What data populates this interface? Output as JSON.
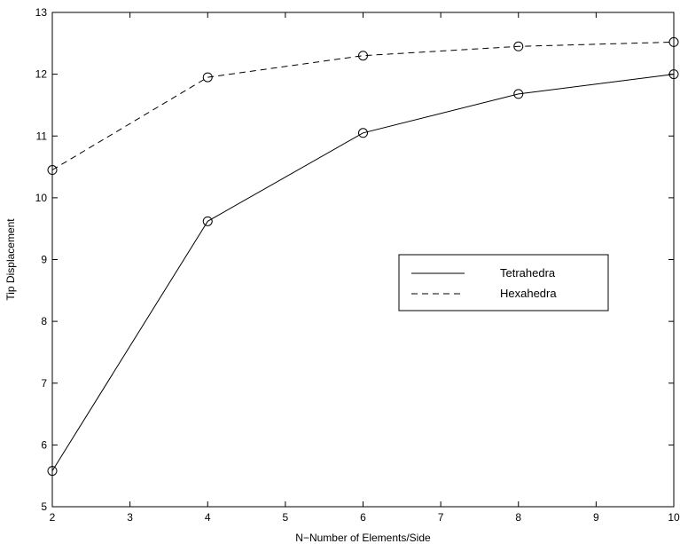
{
  "chart_data": {
    "type": "line",
    "xlabel": "N−Number of Elements/Side",
    "ylabel": "Tip Displacement",
    "xlim": [
      2,
      10
    ],
    "ylim": [
      5,
      13
    ],
    "xticks": [
      2,
      3,
      4,
      5,
      6,
      7,
      8,
      9,
      10
    ],
    "yticks": [
      5,
      6,
      7,
      8,
      9,
      10,
      11,
      12,
      13
    ],
    "x": [
      2,
      4,
      6,
      8,
      10
    ],
    "grid": false,
    "legend_position": "right",
    "series": [
      {
        "name": "Tetrahedra",
        "line_style": "solid",
        "marker": "circle",
        "color": "#000000",
        "values": [
          5.58,
          9.62,
          11.05,
          11.68,
          12.0
        ]
      },
      {
        "name": "Hexahedra",
        "line_style": "dashed",
        "marker": "circle",
        "color": "#000000",
        "values": [
          10.45,
          11.95,
          12.3,
          12.45,
          12.52
        ]
      }
    ]
  }
}
